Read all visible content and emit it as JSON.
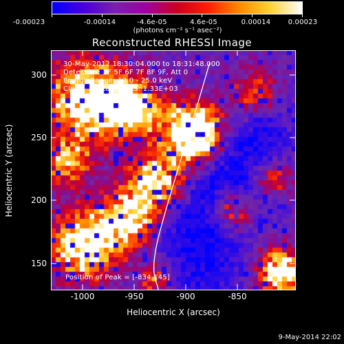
{
  "colorbar": {
    "tick_labels": [
      "-0.00023",
      "-0.00014",
      "-4.6e-05",
      "4.6e-05",
      "0.00014",
      "0.00023"
    ],
    "units": "(photons cm⁻² s⁻¹ asec⁻²)",
    "colors": [
      "#0000ff",
      "#4a00d8",
      "#7a1fb0",
      "#a000a0",
      "#c80020",
      "#ff2000",
      "#ff8a00",
      "#ffd23a",
      "#ffffff"
    ]
  },
  "plot": {
    "title": "Reconstructed RHESSI Image",
    "xlabel": "Heliocentric X (arcsec)",
    "ylabel": "Heliocentric Y (arcsec)",
    "x_ticks": [
      "-1000",
      "-950",
      "-900",
      "-850"
    ],
    "y_ticks": [
      "300",
      "250",
      "200",
      "150"
    ],
    "info_lines": [
      "30-May-2012 18:30:04.000 to 18:31:48.000",
      "Detectors: 3F 5F 6F 7F 8F 9F, Att 0",
      "Energy Range: 12.0 - 25.0 keV",
      "Clean     Total counts: 1.33E+03"
    ],
    "peak_text": "Position of Peak = [-834,145]"
  },
  "footer": {
    "date": "9-May-2014 22:02"
  }
}
